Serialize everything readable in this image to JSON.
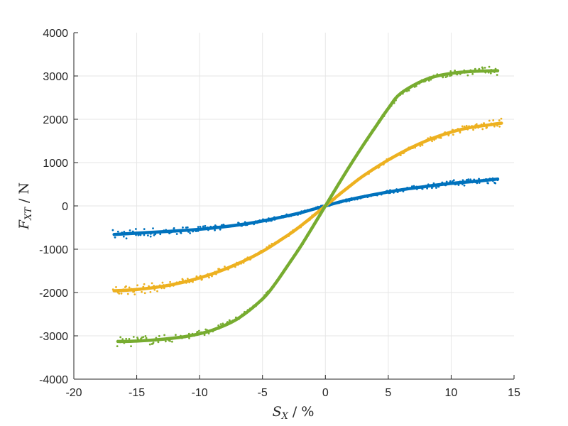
{
  "chart_data": {
    "type": "line",
    "xlabel": {
      "main": "S",
      "sub": "X",
      "rest": " / %"
    },
    "ylabel": {
      "main": "F",
      "sub": "XT",
      "rest": " / N"
    },
    "xlim": [
      -20,
      15
    ],
    "ylim": [
      -4000,
      4000
    ],
    "xticks": [
      -20,
      -15,
      -10,
      -5,
      0,
      5,
      10,
      15
    ],
    "yticks": [
      -4000,
      -3000,
      -2000,
      -1000,
      0,
      1000,
      2000,
      3000,
      4000
    ],
    "xtick_labels": [
      "-20",
      "-15",
      "-10",
      "-5",
      "0",
      "5",
      "10",
      "15"
    ],
    "ytick_labels": [
      "-4000",
      "-3000",
      "-2000",
      "-1000",
      "0",
      "1000",
      "2000",
      "3000",
      "4000"
    ],
    "grid": true,
    "series": [
      {
        "color": "#0072BD",
        "x": [
          -16.8,
          -15,
          -12,
          -10,
          -8,
          -6,
          -4,
          -2,
          -1,
          0,
          1,
          2,
          4,
          6,
          8,
          10,
          12,
          13.7
        ],
        "y": [
          -660,
          -630,
          -580,
          -540,
          -480,
          -400,
          -290,
          -160,
          -80,
          0,
          80,
          150,
          270,
          370,
          450,
          520,
          570,
          620
        ]
      },
      {
        "color": "#EDB120",
        "x": [
          -16.8,
          -15,
          -13,
          -11,
          -9,
          -7,
          -5,
          -3,
          -2,
          -1,
          0,
          1,
          2,
          3,
          5,
          7,
          9,
          11,
          13,
          14
        ],
        "y": [
          -1960,
          -1930,
          -1860,
          -1740,
          -1570,
          -1340,
          -1050,
          -680,
          -470,
          -240,
          0,
          240,
          470,
          690,
          1060,
          1370,
          1610,
          1780,
          1870,
          1910
        ]
      },
      {
        "color": "#77AC30",
        "x": [
          -16.5,
          -15,
          -13,
          -11,
          -9,
          -7,
          -5,
          -4,
          -3,
          -2,
          -1,
          0,
          1,
          2,
          3,
          4,
          5,
          6,
          8,
          10,
          12,
          13.7
        ],
        "y": [
          -3130,
          -3120,
          -3080,
          -3010,
          -2870,
          -2610,
          -2150,
          -1800,
          -1380,
          -950,
          -480,
          0,
          480,
          950,
          1400,
          1830,
          2250,
          2600,
          2920,
          3060,
          3110,
          3120
        ]
      }
    ]
  }
}
